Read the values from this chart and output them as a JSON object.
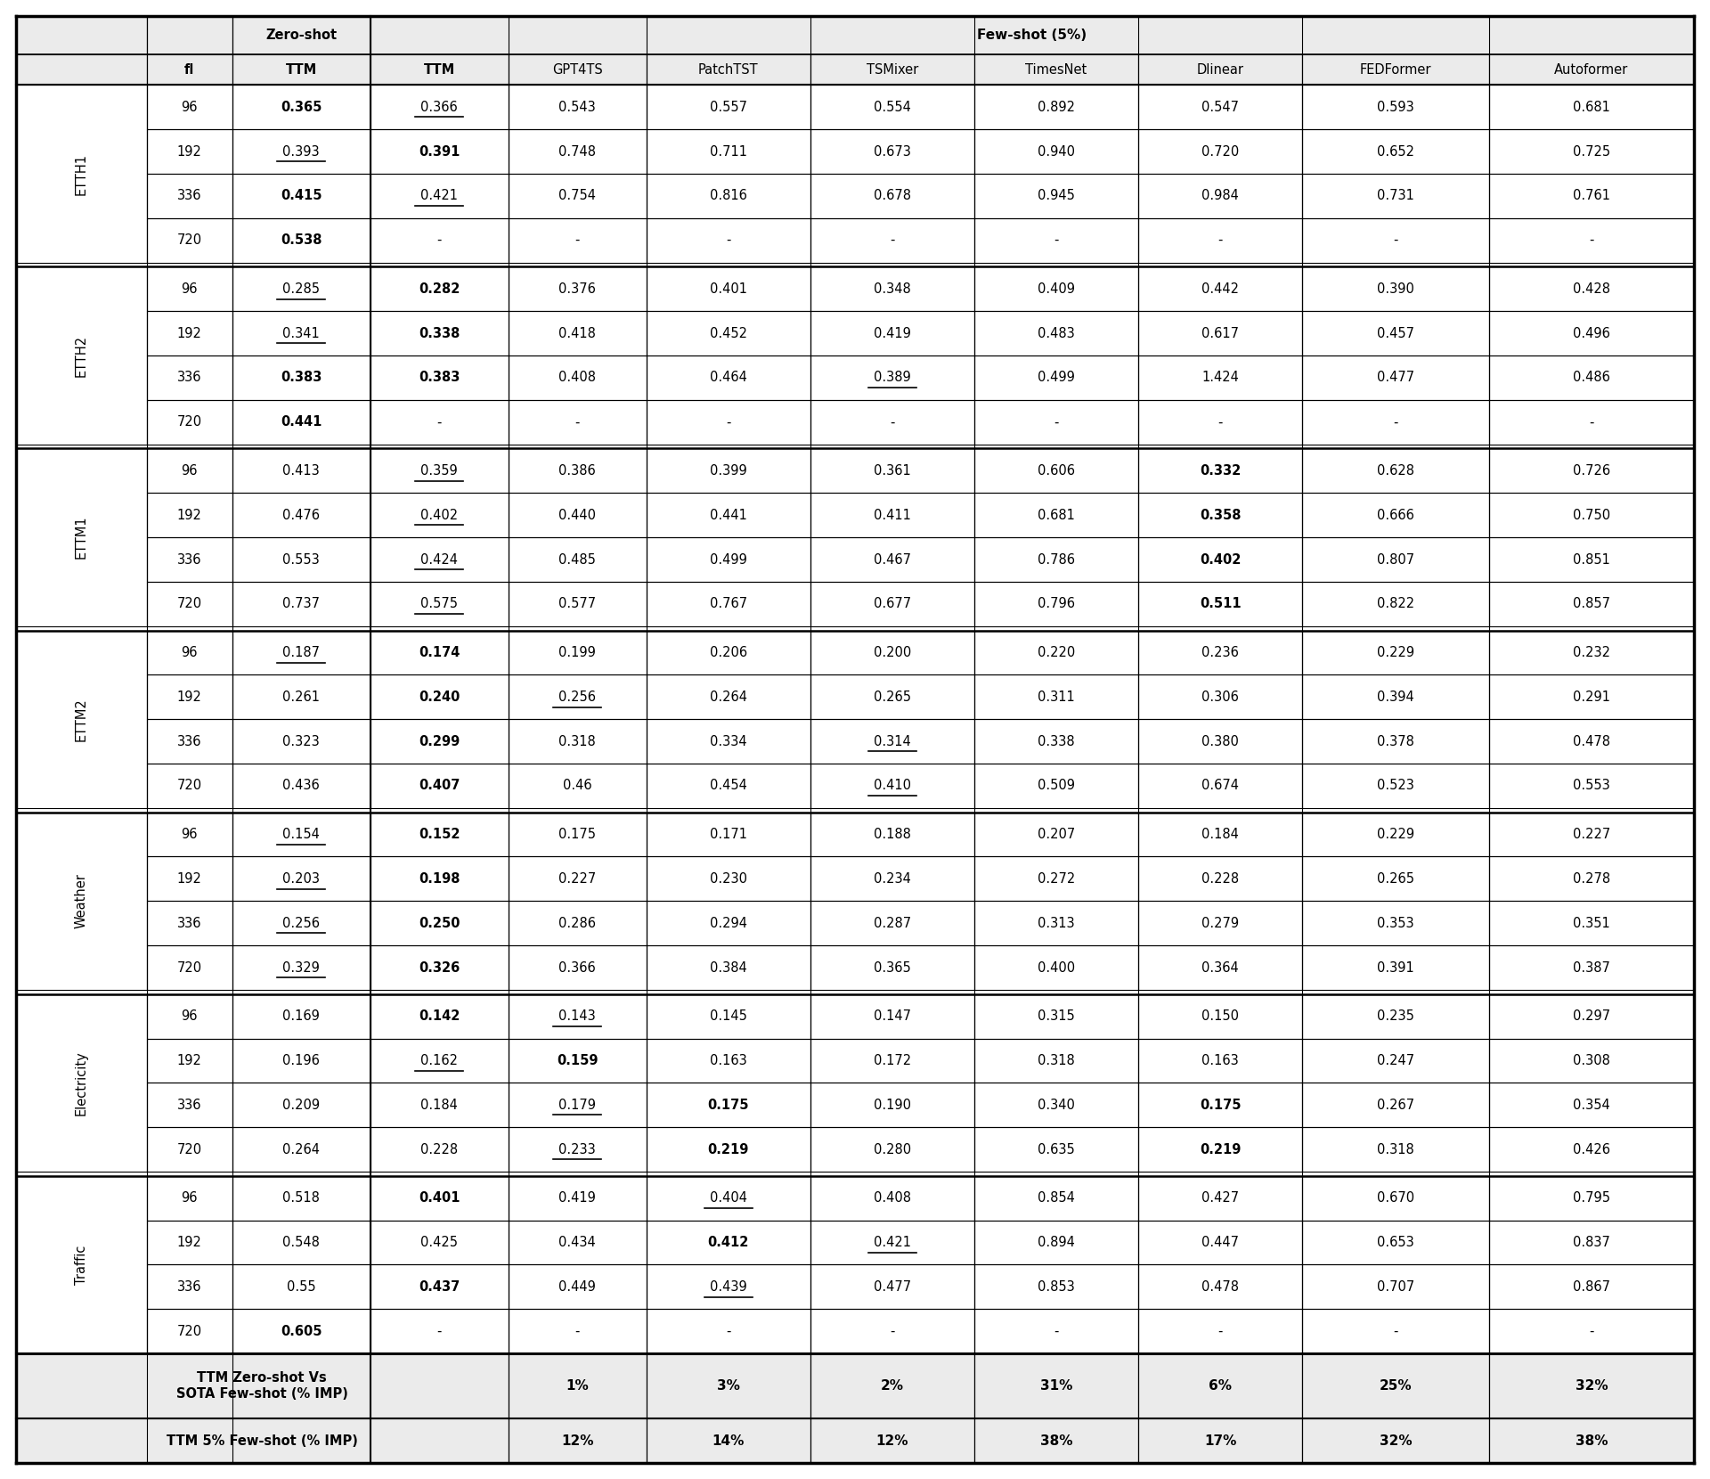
{
  "col_headers_row1": [
    "",
    "",
    "Zero-shot",
    "Few-shot (5%)"
  ],
  "col_headers_row2": [
    "",
    "fl",
    "TTM",
    "TTM",
    "GPT4TS",
    "PatchTST",
    "TSMixer",
    "TimesNet",
    "Dlinear",
    "FEDFormer",
    "Autoformer"
  ],
  "row_groups": [
    {
      "label": "ETTH1",
      "rows": [
        {
          "fl": "96",
          "zs_ttm": "0.365",
          "fs_ttm": "0.366",
          "gpt4ts": "0.543",
          "patchtst": "0.557",
          "tsmixer": "0.554",
          "timesnet": "0.892",
          "dlinear": "0.547",
          "fedformer": "0.593",
          "autoformer": "0.681",
          "zs_bold": true,
          "fs_underline": true
        },
        {
          "fl": "192",
          "zs_ttm": "0.393",
          "fs_ttm": "0.391",
          "gpt4ts": "0.748",
          "patchtst": "0.711",
          "tsmixer": "0.673",
          "timesnet": "0.940",
          "dlinear": "0.720",
          "fedformer": "0.652",
          "autoformer": "0.725",
          "zs_underline": true,
          "fs_bold": true
        },
        {
          "fl": "336",
          "zs_ttm": "0.415",
          "fs_ttm": "0.421",
          "gpt4ts": "0.754",
          "patchtst": "0.816",
          "tsmixer": "0.678",
          "timesnet": "0.945",
          "dlinear": "0.984",
          "fedformer": "0.731",
          "autoformer": "0.761",
          "zs_bold": true,
          "fs_underline": true
        },
        {
          "fl": "720",
          "zs_ttm": "0.538",
          "fs_ttm": "-",
          "gpt4ts": "-",
          "patchtst": "-",
          "tsmixer": "-",
          "timesnet": "-",
          "dlinear": "-",
          "fedformer": "-",
          "autoformer": "-",
          "zs_bold": true
        }
      ]
    },
    {
      "label": "ETTH2",
      "rows": [
        {
          "fl": "96",
          "zs_ttm": "0.285",
          "fs_ttm": "0.282",
          "gpt4ts": "0.376",
          "patchtst": "0.401",
          "tsmixer": "0.348",
          "timesnet": "0.409",
          "dlinear": "0.442",
          "fedformer": "0.390",
          "autoformer": "0.428",
          "zs_underline": true,
          "fs_bold": true
        },
        {
          "fl": "192",
          "zs_ttm": "0.341",
          "fs_ttm": "0.338",
          "gpt4ts": "0.418",
          "patchtst": "0.452",
          "tsmixer": "0.419",
          "timesnet": "0.483",
          "dlinear": "0.617",
          "fedformer": "0.457",
          "autoformer": "0.496",
          "zs_underline": true,
          "fs_bold": true
        },
        {
          "fl": "336",
          "zs_ttm": "0.383",
          "fs_ttm": "0.383",
          "gpt4ts": "0.408",
          "patchtst": "0.464",
          "tsmixer": "0.389",
          "timesnet": "0.499",
          "dlinear": "1.424",
          "fedformer": "0.477",
          "autoformer": "0.486",
          "zs_bold": true,
          "fs_bold": true,
          "tsmixer_underline": true
        },
        {
          "fl": "720",
          "zs_ttm": "0.441",
          "fs_ttm": "-",
          "gpt4ts": "-",
          "patchtst": "-",
          "tsmixer": "-",
          "timesnet": "-",
          "dlinear": "-",
          "fedformer": "-",
          "autoformer": "-",
          "zs_bold": true
        }
      ]
    },
    {
      "label": "ETTM1",
      "rows": [
        {
          "fl": "96",
          "zs_ttm": "0.413",
          "fs_ttm": "0.359",
          "gpt4ts": "0.386",
          "patchtst": "0.399",
          "tsmixer": "0.361",
          "timesnet": "0.606",
          "dlinear": "0.332",
          "fedformer": "0.628",
          "autoformer": "0.726",
          "fs_underline": true,
          "dlinear_bold": true
        },
        {
          "fl": "192",
          "zs_ttm": "0.476",
          "fs_ttm": "0.402",
          "gpt4ts": "0.440",
          "patchtst": "0.441",
          "tsmixer": "0.411",
          "timesnet": "0.681",
          "dlinear": "0.358",
          "fedformer": "0.666",
          "autoformer": "0.750",
          "fs_underline": true,
          "dlinear_bold": true
        },
        {
          "fl": "336",
          "zs_ttm": "0.553",
          "fs_ttm": "0.424",
          "gpt4ts": "0.485",
          "patchtst": "0.499",
          "tsmixer": "0.467",
          "timesnet": "0.786",
          "dlinear": "0.402",
          "fedformer": "0.807",
          "autoformer": "0.851",
          "fs_underline": true,
          "dlinear_bold": true
        },
        {
          "fl": "720",
          "zs_ttm": "0.737",
          "fs_ttm": "0.575",
          "gpt4ts": "0.577",
          "patchtst": "0.767",
          "tsmixer": "0.677",
          "timesnet": "0.796",
          "dlinear": "0.511",
          "fedformer": "0.822",
          "autoformer": "0.857",
          "fs_underline": true,
          "dlinear_bold": true
        }
      ]
    },
    {
      "label": "ETTM2",
      "rows": [
        {
          "fl": "96",
          "zs_ttm": "0.187",
          "fs_ttm": "0.174",
          "gpt4ts": "0.199",
          "patchtst": "0.206",
          "tsmixer": "0.200",
          "timesnet": "0.220",
          "dlinear": "0.236",
          "fedformer": "0.229",
          "autoformer": "0.232",
          "zs_underline": true,
          "fs_bold": true
        },
        {
          "fl": "192",
          "zs_ttm": "0.261",
          "fs_ttm": "0.240",
          "gpt4ts": "0.256",
          "patchtst": "0.264",
          "tsmixer": "0.265",
          "timesnet": "0.311",
          "dlinear": "0.306",
          "fedformer": "0.394",
          "autoformer": "0.291",
          "fs_bold": true,
          "gpt4ts_underline": true
        },
        {
          "fl": "336",
          "zs_ttm": "0.323",
          "fs_ttm": "0.299",
          "gpt4ts": "0.318",
          "patchtst": "0.334",
          "tsmixer": "0.314",
          "timesnet": "0.338",
          "dlinear": "0.380",
          "fedformer": "0.378",
          "autoformer": "0.478",
          "fs_bold": true,
          "tsmixer_underline": true
        },
        {
          "fl": "720",
          "zs_ttm": "0.436",
          "fs_ttm": "0.407",
          "gpt4ts": "0.46",
          "patchtst": "0.454",
          "tsmixer": "0.410",
          "timesnet": "0.509",
          "dlinear": "0.674",
          "fedformer": "0.523",
          "autoformer": "0.553",
          "fs_bold": true,
          "tsmixer_underline": true
        }
      ]
    },
    {
      "label": "Weather",
      "rows": [
        {
          "fl": "96",
          "zs_ttm": "0.154",
          "fs_ttm": "0.152",
          "gpt4ts": "0.175",
          "patchtst": "0.171",
          "tsmixer": "0.188",
          "timesnet": "0.207",
          "dlinear": "0.184",
          "fedformer": "0.229",
          "autoformer": "0.227",
          "zs_underline": true,
          "fs_bold": true
        },
        {
          "fl": "192",
          "zs_ttm": "0.203",
          "fs_ttm": "0.198",
          "gpt4ts": "0.227",
          "patchtst": "0.230",
          "tsmixer": "0.234",
          "timesnet": "0.272",
          "dlinear": "0.228",
          "fedformer": "0.265",
          "autoformer": "0.278",
          "zs_underline": true,
          "fs_bold": true
        },
        {
          "fl": "336",
          "zs_ttm": "0.256",
          "fs_ttm": "0.250",
          "gpt4ts": "0.286",
          "patchtst": "0.294",
          "tsmixer": "0.287",
          "timesnet": "0.313",
          "dlinear": "0.279",
          "fedformer": "0.353",
          "autoformer": "0.351",
          "zs_underline": true,
          "fs_bold": true
        },
        {
          "fl": "720",
          "zs_ttm": "0.329",
          "fs_ttm": "0.326",
          "gpt4ts": "0.366",
          "patchtst": "0.384",
          "tsmixer": "0.365",
          "timesnet": "0.400",
          "dlinear": "0.364",
          "fedformer": "0.391",
          "autoformer": "0.387",
          "zs_underline": true,
          "fs_bold": true
        }
      ]
    },
    {
      "label": "Electricity",
      "rows": [
        {
          "fl": "96",
          "zs_ttm": "0.169",
          "fs_ttm": "0.142",
          "gpt4ts": "0.143",
          "patchtst": "0.145",
          "tsmixer": "0.147",
          "timesnet": "0.315",
          "dlinear": "0.150",
          "fedformer": "0.235",
          "autoformer": "0.297",
          "fs_bold": true,
          "gpt4ts_underline": true
        },
        {
          "fl": "192",
          "zs_ttm": "0.196",
          "fs_ttm": "0.162",
          "gpt4ts": "0.159",
          "patchtst": "0.163",
          "tsmixer": "0.172",
          "timesnet": "0.318",
          "dlinear": "0.163",
          "fedformer": "0.247",
          "autoformer": "0.308",
          "fs_underline": true,
          "gpt4ts_bold": true
        },
        {
          "fl": "336",
          "zs_ttm": "0.209",
          "fs_ttm": "0.184",
          "gpt4ts": "0.179",
          "patchtst": "0.175",
          "tsmixer": "0.190",
          "timesnet": "0.340",
          "dlinear": "0.175",
          "fedformer": "0.267",
          "autoformer": "0.354",
          "gpt4ts_underline": true,
          "patchtst_bold": true,
          "dlinear_bold": true
        },
        {
          "fl": "720",
          "zs_ttm": "0.264",
          "fs_ttm": "0.228",
          "gpt4ts": "0.233",
          "patchtst": "0.219",
          "tsmixer": "0.280",
          "timesnet": "0.635",
          "dlinear": "0.219",
          "fedformer": "0.318",
          "autoformer": "0.426",
          "patchtst_bold": true,
          "dlinear_bold": true,
          "gpt4ts_underline": true
        }
      ]
    },
    {
      "label": "Traffic",
      "rows": [
        {
          "fl": "96",
          "zs_ttm": "0.518",
          "fs_ttm": "0.401",
          "gpt4ts": "0.419",
          "patchtst": "0.404",
          "tsmixer": "0.408",
          "timesnet": "0.854",
          "dlinear": "0.427",
          "fedformer": "0.670",
          "autoformer": "0.795",
          "fs_bold": true,
          "patchtst_underline": true
        },
        {
          "fl": "192",
          "zs_ttm": "0.548",
          "fs_ttm": "0.425",
          "gpt4ts": "0.434",
          "patchtst": "0.412",
          "tsmixer": "0.421",
          "timesnet": "0.894",
          "dlinear": "0.447",
          "fedformer": "0.653",
          "autoformer": "0.837",
          "patchtst_bold": true,
          "tsmixer_underline": true
        },
        {
          "fl": "336",
          "zs_ttm": "0.55",
          "fs_ttm": "0.437",
          "gpt4ts": "0.449",
          "patchtst": "0.439",
          "tsmixer": "0.477",
          "timesnet": "0.853",
          "dlinear": "0.478",
          "fedformer": "0.707",
          "autoformer": "0.867",
          "fs_bold": true,
          "patchtst_underline": true
        },
        {
          "fl": "720",
          "zs_ttm": "0.605",
          "fs_ttm": "-",
          "gpt4ts": "-",
          "patchtst": "-",
          "tsmixer": "-",
          "timesnet": "-",
          "dlinear": "-",
          "fedformer": "-",
          "autoformer": "-",
          "zs_bold": true
        }
      ]
    }
  ],
  "imp_row1": [
    "TTM Zero-shot Vs\nSOTA Few-shot (% IMP)",
    "1%",
    "3%",
    "2%",
    "31%",
    "6%",
    "25%",
    "32%"
  ],
  "imp_row2": [
    "TTM 5% Few-shot (% IMP)",
    "12%",
    "14%",
    "12%",
    "38%",
    "17%",
    "32%",
    "38%"
  ],
  "background_color": "#ffffff"
}
